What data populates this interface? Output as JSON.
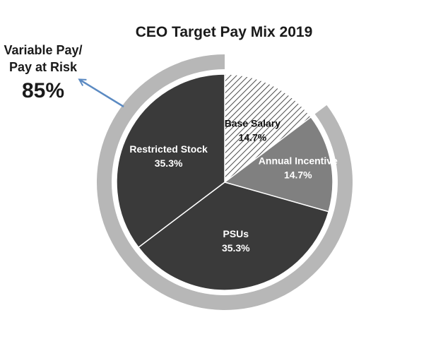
{
  "chart_data": {
    "type": "pie",
    "title": "CEO Target Pay Mix 2019",
    "slices": [
      {
        "label": "Base Salary",
        "value": 14.7,
        "value_label": "14.7%",
        "fill": "hatch",
        "text_color": "#111111"
      },
      {
        "label": "Annual Incentive",
        "value": 14.7,
        "value_label": "14.7%",
        "fill": "#808080",
        "text_color": "#ffffff"
      },
      {
        "label": "PSUs",
        "value": 35.3,
        "value_label": "35.3%",
        "fill": "#3a3a3a",
        "text_color": "#ffffff"
      },
      {
        "label": "Restricted Stock",
        "value": 35.3,
        "value_label": "35.3%",
        "fill": "#3a3a3a",
        "text_color": "#ffffff"
      }
    ],
    "start_angle_deg": 0,
    "direction": "clockwise",
    "variable_pay": {
      "line1": "Variable Pay/",
      "line2": "Pay at Risk",
      "value_label": "85%",
      "percent": 85
    }
  },
  "colors": {
    "ring": "#b7b7b7",
    "slice_border": "#ffffff",
    "arrow": "#5b8ac2",
    "title": "#1a1a1a",
    "callout_text": "#1a1a1a"
  }
}
